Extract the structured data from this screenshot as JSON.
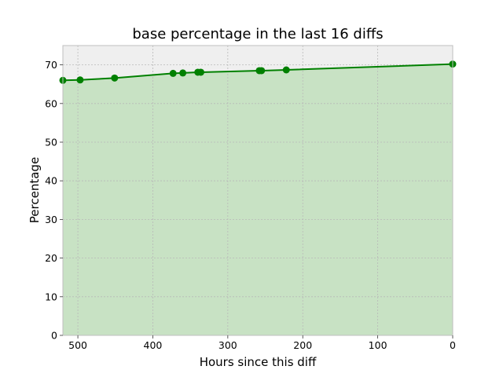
{
  "chart_data": {
    "type": "area",
    "title": "base percentage in the last 16 diffs",
    "xlabel": "Hours since this diff",
    "ylabel": "Percentage",
    "xlim": [
      520,
      0
    ],
    "ylim": [
      0,
      75
    ],
    "x_ticks": [
      500,
      400,
      300,
      200,
      100,
      0
    ],
    "y_ticks": [
      0,
      10,
      20,
      30,
      40,
      50,
      60,
      70
    ],
    "grid": true,
    "x_reversed": true,
    "colors": {
      "line": "#008000",
      "fill": "#c8e2c4",
      "plot_background": "#efefef",
      "grid": "#b8b8b8"
    },
    "series": [
      {
        "x": [
          520,
          497,
          451,
          373,
          360,
          340,
          336,
          258,
          255,
          222,
          0
        ],
        "y": [
          66.0,
          66.1,
          66.6,
          67.8,
          67.9,
          68.1,
          68.1,
          68.5,
          68.5,
          68.7,
          70.2
        ]
      }
    ]
  }
}
